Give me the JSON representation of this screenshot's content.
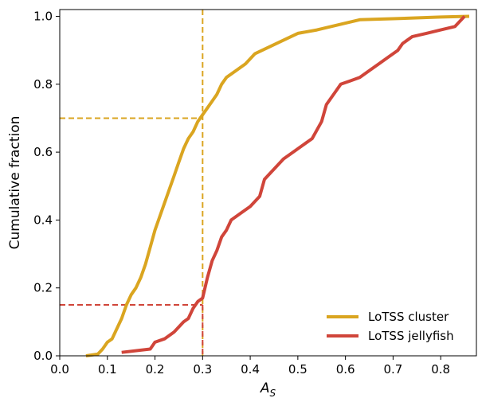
{
  "chart_data": {
    "type": "line",
    "title": "",
    "xlabel_main": "A",
    "xlabel_sub": "S",
    "ylabel": "Cumulative fraction",
    "xlim": [
      0.0,
      0.875
    ],
    "ylim": [
      0.0,
      1.02
    ],
    "xticks": [
      "0.0",
      "0.1",
      "0.2",
      "0.3",
      "0.4",
      "0.5",
      "0.6",
      "0.7",
      "0.8"
    ],
    "yticks": [
      "0.0",
      "0.2",
      "0.4",
      "0.6",
      "0.8",
      "1.0"
    ],
    "grid": false,
    "legend_position": "bottom-right",
    "series": [
      {
        "name": "LoTSS cluster",
        "color": "#DAA520",
        "points": [
          [
            0.055,
            0.0
          ],
          [
            0.08,
            0.005
          ],
          [
            0.09,
            0.02
          ],
          [
            0.1,
            0.04
          ],
          [
            0.11,
            0.05
          ],
          [
            0.12,
            0.08
          ],
          [
            0.13,
            0.11
          ],
          [
            0.14,
            0.15
          ],
          [
            0.15,
            0.18
          ],
          [
            0.16,
            0.2
          ],
          [
            0.17,
            0.23
          ],
          [
            0.18,
            0.27
          ],
          [
            0.19,
            0.32
          ],
          [
            0.2,
            0.37
          ],
          [
            0.21,
            0.41
          ],
          [
            0.22,
            0.45
          ],
          [
            0.23,
            0.49
          ],
          [
            0.24,
            0.53
          ],
          [
            0.25,
            0.57
          ],
          [
            0.26,
            0.61
          ],
          [
            0.27,
            0.64
          ],
          [
            0.28,
            0.66
          ],
          [
            0.29,
            0.69
          ],
          [
            0.3,
            0.71
          ],
          [
            0.31,
            0.73
          ],
          [
            0.32,
            0.75
          ],
          [
            0.33,
            0.77
          ],
          [
            0.34,
            0.8
          ],
          [
            0.35,
            0.82
          ],
          [
            0.37,
            0.84
          ],
          [
            0.39,
            0.86
          ],
          [
            0.41,
            0.89
          ],
          [
            0.44,
            0.91
          ],
          [
            0.47,
            0.93
          ],
          [
            0.5,
            0.95
          ],
          [
            0.54,
            0.96
          ],
          [
            0.57,
            0.97
          ],
          [
            0.6,
            0.98
          ],
          [
            0.63,
            0.99
          ],
          [
            0.7,
            0.993
          ],
          [
            0.8,
            0.998
          ],
          [
            0.86,
            1.0
          ]
        ]
      },
      {
        "name": "LoTSS jellyfish",
        "color": "#D0453A",
        "points": [
          [
            0.13,
            0.01
          ],
          [
            0.19,
            0.02
          ],
          [
            0.2,
            0.04
          ],
          [
            0.22,
            0.05
          ],
          [
            0.24,
            0.07
          ],
          [
            0.26,
            0.1
          ],
          [
            0.27,
            0.11
          ],
          [
            0.28,
            0.14
          ],
          [
            0.29,
            0.16
          ],
          [
            0.3,
            0.17
          ],
          [
            0.31,
            0.23
          ],
          [
            0.32,
            0.28
          ],
          [
            0.33,
            0.31
          ],
          [
            0.34,
            0.35
          ],
          [
            0.35,
            0.37
          ],
          [
            0.36,
            0.4
          ],
          [
            0.38,
            0.42
          ],
          [
            0.4,
            0.44
          ],
          [
            0.42,
            0.47
          ],
          [
            0.43,
            0.52
          ],
          [
            0.45,
            0.55
          ],
          [
            0.47,
            0.58
          ],
          [
            0.49,
            0.6
          ],
          [
            0.51,
            0.62
          ],
          [
            0.53,
            0.64
          ],
          [
            0.55,
            0.69
          ],
          [
            0.56,
            0.74
          ],
          [
            0.57,
            0.76
          ],
          [
            0.58,
            0.78
          ],
          [
            0.59,
            0.8
          ],
          [
            0.61,
            0.81
          ],
          [
            0.63,
            0.82
          ],
          [
            0.65,
            0.84
          ],
          [
            0.67,
            0.86
          ],
          [
            0.69,
            0.88
          ],
          [
            0.71,
            0.9
          ],
          [
            0.72,
            0.92
          ],
          [
            0.74,
            0.94
          ],
          [
            0.77,
            0.95
          ],
          [
            0.8,
            0.96
          ],
          [
            0.83,
            0.97
          ],
          [
            0.85,
            1.0
          ]
        ]
      }
    ],
    "reference_lines": [
      {
        "color": "#DAA520",
        "x": 0.3,
        "y": 0.7,
        "vertical_full": true
      },
      {
        "color": "#D0453A",
        "x": 0.3,
        "y": 0.15,
        "vertical_full": false
      }
    ]
  }
}
